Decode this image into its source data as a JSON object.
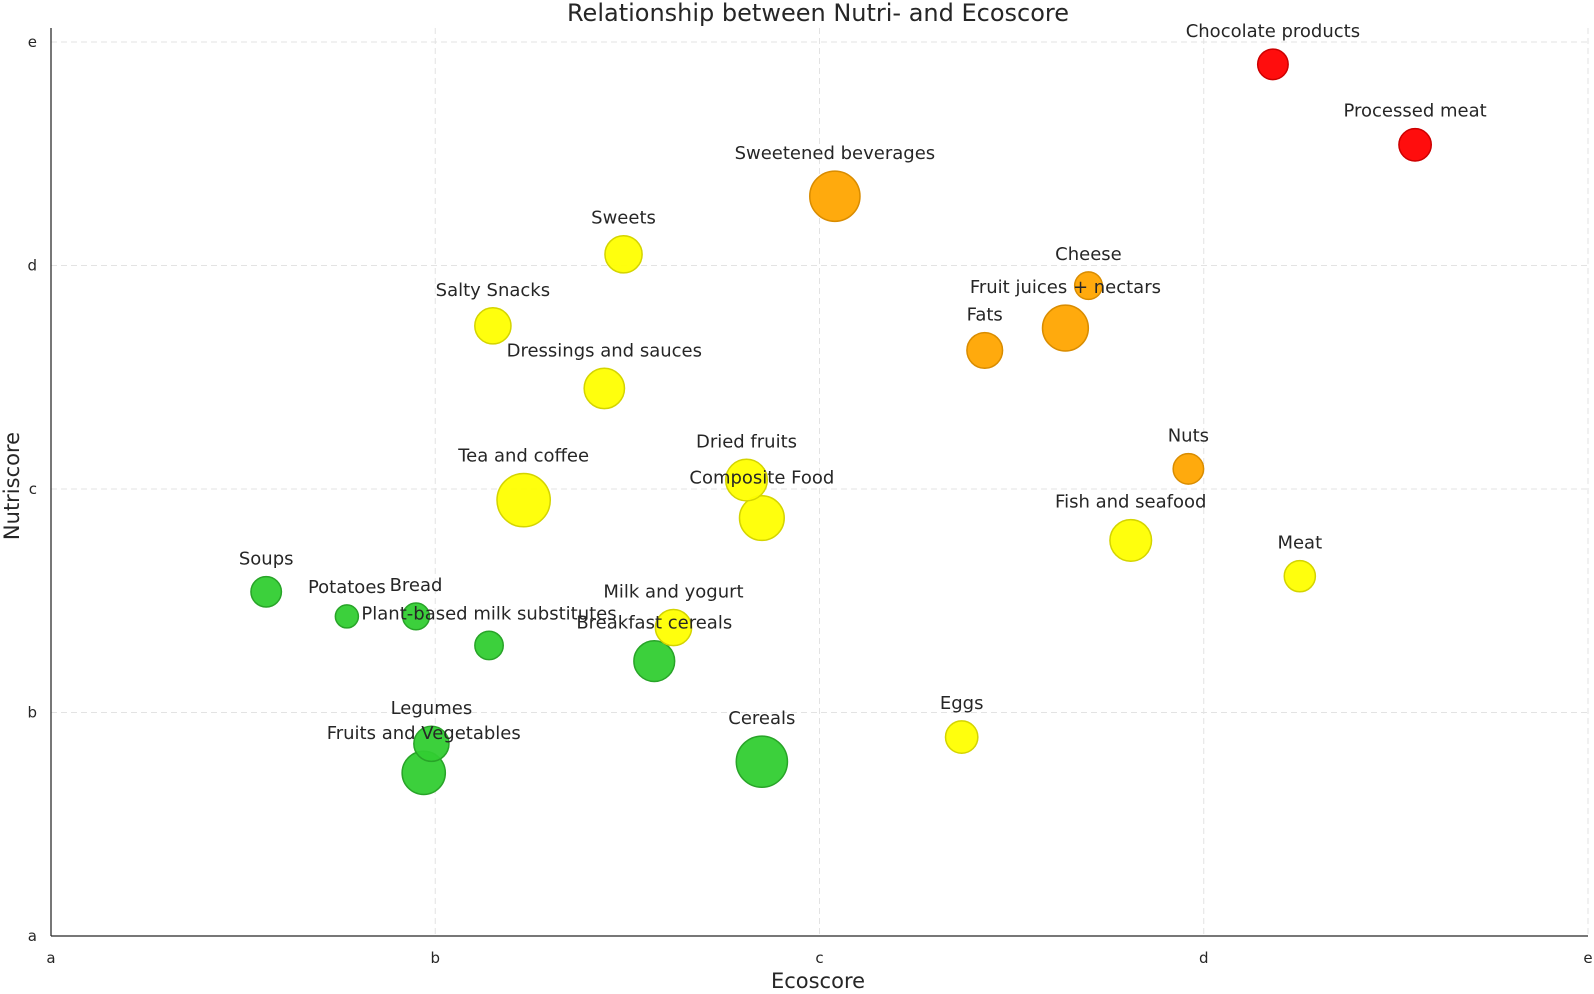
{
  "chart_data": {
    "type": "scatter",
    "title": "Relationship between Nutri- and Ecoscore",
    "xlabel": "Ecoscore",
    "ylabel": "Nutriscore",
    "x_ticks": [
      "a",
      "b",
      "c",
      "d",
      "e"
    ],
    "y_ticks": [
      "a",
      "b",
      "c",
      "d",
      "e"
    ],
    "xlim": [
      0,
      4
    ],
    "ylim": [
      0,
      4
    ],
    "grid": true,
    "colors": {
      "green": "#32cd32",
      "yellow": "#ffff00",
      "orange": "#ffa500",
      "red": "#ff0000"
    },
    "points": [
      {
        "label": "Chocolate products",
        "x": 3.18,
        "y": 3.9,
        "color": "red",
        "size": 1.4
      },
      {
        "label": "Processed meat",
        "x": 3.55,
        "y": 3.54,
        "color": "red",
        "size": 1.7
      },
      {
        "label": "Sweetened beverages",
        "x": 2.04,
        "y": 3.31,
        "color": "orange",
        "size": 6.0
      },
      {
        "label": "Sweets",
        "x": 1.49,
        "y": 3.05,
        "color": "yellow",
        "size": 2.6
      },
      {
        "label": "Cheese",
        "x": 2.7,
        "y": 2.91,
        "color": "orange",
        "size": 1.0
      },
      {
        "label": "Salty Snacks",
        "x": 1.15,
        "y": 2.73,
        "color": "yellow",
        "size": 2.4
      },
      {
        "label": "Fruit juices + nectars",
        "x": 2.64,
        "y": 2.72,
        "color": "orange",
        "size": 4.7
      },
      {
        "label": "Fats",
        "x": 2.43,
        "y": 2.62,
        "color": "orange",
        "size": 2.3
      },
      {
        "label": "Dressings and sauces",
        "x": 1.44,
        "y": 2.45,
        "color": "yellow",
        "size": 3.3
      },
      {
        "label": "Nuts",
        "x": 2.96,
        "y": 2.09,
        "color": "orange",
        "size": 1.4
      },
      {
        "label": "Dried fruits",
        "x": 1.81,
        "y": 2.04,
        "color": "yellow",
        "size": 3.6
      },
      {
        "label": "Tea and coffee",
        "x": 1.23,
        "y": 1.95,
        "color": "yellow",
        "size": 7.0
      },
      {
        "label": "Composite Food",
        "x": 1.85,
        "y": 1.87,
        "color": "yellow",
        "size": 4.4
      },
      {
        "label": "Fish and seafood",
        "x": 2.81,
        "y": 1.77,
        "color": "yellow",
        "size": 3.6
      },
      {
        "label": "Meat",
        "x": 3.25,
        "y": 1.61,
        "color": "yellow",
        "size": 1.5
      },
      {
        "label": "Soups",
        "x": 0.56,
        "y": 1.54,
        "color": "green",
        "size": 1.4
      },
      {
        "label": "Potatoes",
        "x": 0.77,
        "y": 1.43,
        "color": "green",
        "size": 0.5
      },
      {
        "label": "Bread",
        "x": 0.95,
        "y": 1.43,
        "color": "green",
        "size": 0.9
      },
      {
        "label": "Milk and yogurt",
        "x": 1.62,
        "y": 1.38,
        "color": "yellow",
        "size": 2.4
      },
      {
        "label": "Plant-based milk substitutes",
        "x": 1.14,
        "y": 1.3,
        "color": "green",
        "size": 1.1
      },
      {
        "label": "Breakfast cereals",
        "x": 1.57,
        "y": 1.23,
        "color": "green",
        "size": 3.4
      },
      {
        "label": "Eggs",
        "x": 2.37,
        "y": 0.89,
        "color": "yellow",
        "size": 1.7
      },
      {
        "label": "Legumes",
        "x": 0.99,
        "y": 0.86,
        "color": "green",
        "size": 2.2
      },
      {
        "label": "Cereals",
        "x": 1.85,
        "y": 0.78,
        "color": "green",
        "size": 6.3
      },
      {
        "label": "Fruits and Vegetables",
        "x": 0.97,
        "y": 0.73,
        "color": "green",
        "size": 4.0
      }
    ]
  }
}
